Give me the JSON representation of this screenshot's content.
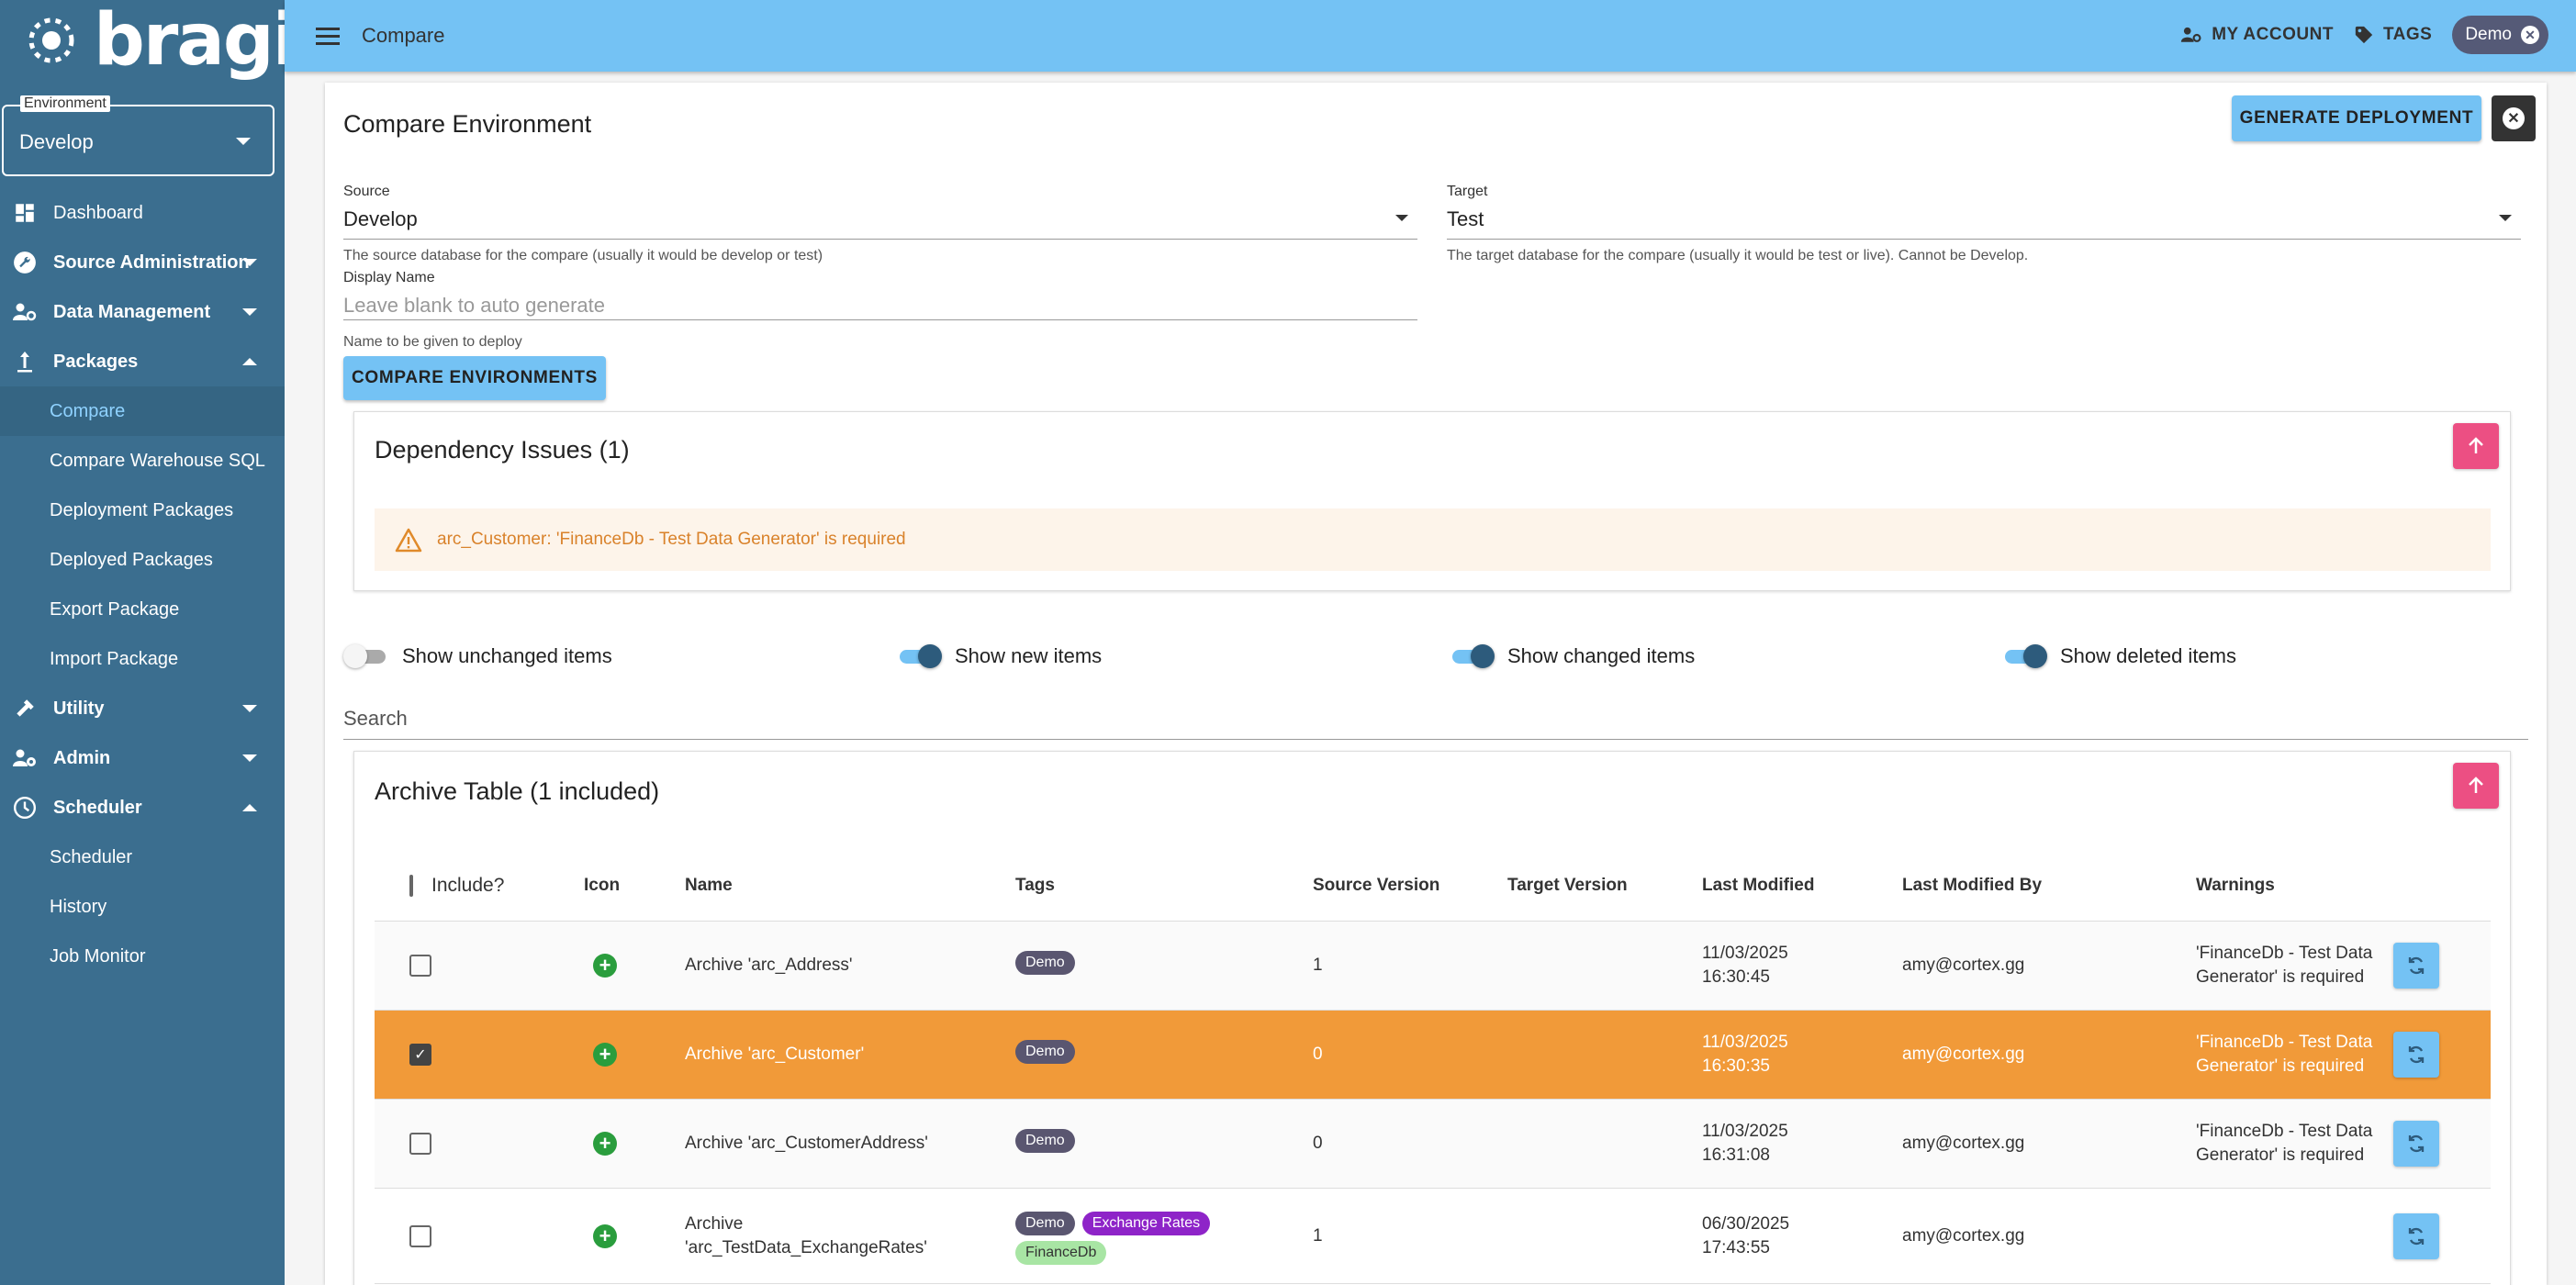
{
  "app": {
    "logo_text": "bragi",
    "breadcrumb": "Compare"
  },
  "environment": {
    "label": "Environment",
    "value": "Develop"
  },
  "sidebar": {
    "items": [
      {
        "label": "Dashboard"
      },
      {
        "label": "Source Administration"
      },
      {
        "label": "Data Management"
      },
      {
        "label": "Packages"
      },
      {
        "label": "Compare"
      },
      {
        "label": "Compare Warehouse SQL"
      },
      {
        "label": "Deployment Packages"
      },
      {
        "label": "Deployed Packages"
      },
      {
        "label": "Export Package"
      },
      {
        "label": "Import Package"
      },
      {
        "label": "Utility"
      },
      {
        "label": "Admin"
      },
      {
        "label": "Scheduler"
      },
      {
        "label": "Scheduler"
      },
      {
        "label": "History"
      },
      {
        "label": "Job Monitor"
      }
    ]
  },
  "topbar": {
    "account_label": "MY ACCOUNT",
    "tags_label": "TAGS",
    "user_chip": "Demo"
  },
  "page": {
    "title": "Compare Environment",
    "generate_label": "GENERATE DEPLOYMENT",
    "source": {
      "label": "Source",
      "value": "Develop",
      "help": "The source database for the compare (usually it would be develop or test)"
    },
    "target": {
      "label": "Target",
      "value": "Test",
      "help": "The target database for the compare (usually it would be test or live). Cannot be Develop."
    },
    "display_name": {
      "label": "Display Name",
      "placeholder": "Leave blank to auto generate",
      "help": "Name to be given to deploy"
    },
    "compare_label": "COMPARE ENVIRONMENTS"
  },
  "dependency": {
    "title": "Dependency Issues (1)",
    "warning": "arc_Customer: 'FinanceDb - Test Data Generator' is required"
  },
  "toggles": {
    "unchanged": {
      "label": "Show unchanged items",
      "on": false
    },
    "new": {
      "label": "Show new items",
      "on": true
    },
    "changed": {
      "label": "Show changed items",
      "on": true
    },
    "deleted": {
      "label": "Show deleted items",
      "on": true
    }
  },
  "search": {
    "placeholder": "Search"
  },
  "archive": {
    "title": "Archive Table (1 included)",
    "columns": [
      "Include?",
      "Icon",
      "Name",
      "Tags",
      "Source Version",
      "Target Version",
      "Last Modified",
      "Last Modified By",
      "Warnings"
    ],
    "rows": [
      {
        "name": "Archive 'arc_Address'",
        "tags": [
          "Demo"
        ],
        "source_version": "1",
        "target_version": "",
        "modified_date": "11/03/2025",
        "modified_time": "16:30:45",
        "modified_by": "amy@cortex.gg",
        "warning": "'FinanceDb - Test Data Generator' is required",
        "checked": false
      },
      {
        "name": "Archive 'arc_Customer'",
        "tags": [
          "Demo"
        ],
        "source_version": "0",
        "target_version": "",
        "modified_date": "11/03/2025",
        "modified_time": "16:30:35",
        "modified_by": "amy@cortex.gg",
        "warning": "'FinanceDb - Test Data Generator' is required",
        "checked": true
      },
      {
        "name": "Archive 'arc_CustomerAddress'",
        "tags": [
          "Demo"
        ],
        "source_version": "0",
        "target_version": "",
        "modified_date": "11/03/2025",
        "modified_time": "16:31:08",
        "modified_by": "amy@cortex.gg",
        "warning": "'FinanceDb - Test Data Generator' is required",
        "checked": false
      },
      {
        "name_line1": "Archive",
        "name_line2": "'arc_TestData_ExchangeRates'",
        "tags": [
          "Demo",
          "Exchange Rates",
          "FinanceDb"
        ],
        "source_version": "1",
        "target_version": "",
        "modified_date": "06/30/2025",
        "modified_time": "17:43:55",
        "modified_by": "amy@cortex.gg",
        "warning": "",
        "checked": false
      }
    ]
  },
  "colors": {
    "sidebar": "#3b6e8f",
    "topbar": "#74c2f4",
    "accent_pink": "#ec4f83",
    "selected_row": "#f19a39",
    "warning_text": "#d9822b"
  }
}
